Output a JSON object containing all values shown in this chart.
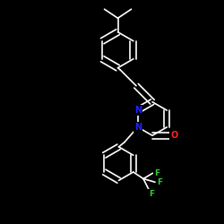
{
  "background_color": "#000000",
  "bond_color": "#ffffff",
  "atom_colors": {
    "N": "#2222ff",
    "O": "#ff2222",
    "F": "#33cc33",
    "C": "#ffffff"
  },
  "bond_width": 1.2,
  "figsize": [
    2.5,
    2.5
  ],
  "dpi": 100,
  "xlim": [
    0.0,
    1.0
  ],
  "ylim": [
    0.0,
    1.0
  ]
}
